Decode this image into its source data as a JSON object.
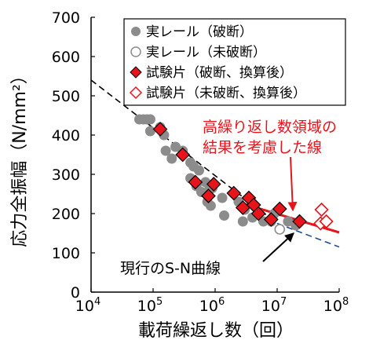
{
  "chart_data": {
    "type": "scatter",
    "title": "",
    "xlabel": "載荷繰返し数（回）",
    "ylabel": "応力全振幅（N/mm²）",
    "xscale": "log",
    "xlim": [
      10000,
      100000000
    ],
    "ylim": [
      0,
      700
    ],
    "x_ticks": [
      {
        "value": 10000,
        "base": "10",
        "exp": "4"
      },
      {
        "value": 100000,
        "base": "10",
        "exp": "5"
      },
      {
        "value": 1000000,
        "base": "10",
        "exp": "6"
      },
      {
        "value": 10000000,
        "base": "10",
        "exp": "7"
      },
      {
        "value": 100000000,
        "base": "10",
        "exp": "8"
      }
    ],
    "y_ticks": [
      0,
      100,
      200,
      300,
      400,
      500,
      600,
      700
    ],
    "legend_position": "top-right",
    "series": [
      {
        "name": "実レール（破断）",
        "marker": "circle-filled",
        "color": "#8c8c8c",
        "points": [
          [
            60000,
            440
          ],
          [
            70000,
            440
          ],
          [
            80000,
            440
          ],
          [
            90000,
            440
          ],
          [
            130000,
            420
          ],
          [
            90000,
            410
          ],
          [
            150000,
            400
          ],
          [
            160000,
            360
          ],
          [
            230000,
            370
          ],
          [
            300000,
            360
          ],
          [
            200000,
            340
          ],
          [
            400000,
            330
          ],
          [
            450000,
            320
          ],
          [
            550000,
            310
          ],
          [
            400000,
            290
          ],
          [
            500000,
            270
          ],
          [
            700000,
            280
          ],
          [
            600000,
            255
          ],
          [
            800000,
            260
          ],
          [
            900000,
            265
          ],
          [
            750000,
            230
          ],
          [
            850000,
            220
          ],
          [
            1300000,
            240
          ],
          [
            2400000,
            230
          ],
          [
            3000000,
            210
          ],
          [
            1400000,
            195
          ],
          [
            2800000,
            180
          ],
          [
            4000000,
            190
          ],
          [
            6000000,
            180
          ],
          [
            8000000,
            180
          ],
          [
            9000000,
            200
          ],
          [
            15000000,
            180
          ],
          [
            20000000,
            170
          ]
        ]
      },
      {
        "name": "実レール（未破断）",
        "marker": "circle-open",
        "color": "#8c8c8c",
        "points": [
          [
            11000000,
            160
          ]
        ]
      },
      {
        "name": "試験片（破断、換算後）",
        "marker": "diamond-filled",
        "color": "#e8141c",
        "points": [
          [
            130000,
            415
          ],
          [
            300000,
            350
          ],
          [
            480000,
            280
          ],
          [
            780000,
            245
          ],
          [
            950000,
            275
          ],
          [
            2000000,
            252
          ],
          [
            2800000,
            215
          ],
          [
            3500000,
            240
          ],
          [
            4200000,
            222
          ],
          [
            5000000,
            200
          ],
          [
            8000000,
            185
          ],
          [
            11000000,
            212
          ],
          [
            23000000,
            180
          ]
        ]
      },
      {
        "name": "試験片（未破断、換算後）",
        "marker": "diamond-open",
        "color": "#e8141c",
        "points": [
          [
            52000000,
            210
          ],
          [
            50000000,
            175
          ],
          [
            62000000,
            180
          ]
        ]
      }
    ],
    "lines": [
      {
        "name": "現行のS-N曲線",
        "style": "dashed",
        "color": "#000000",
        "points": [
          [
            10000,
            540
          ],
          [
            10000000,
            175
          ]
        ]
      },
      {
        "name": "",
        "style": "dashed",
        "color": "#1f4e8c",
        "points": [
          [
            10000000,
            175
          ],
          [
            100000000,
            115
          ]
        ]
      },
      {
        "name": "高繰り返し数領域の結果を考慮した線",
        "style": "solid",
        "color": "#e8141c",
        "points": [
          [
            2000000,
            232
          ],
          [
            100000000,
            152
          ]
        ]
      }
    ],
    "annotations": {
      "red_line_label": [
        "高繰り返し数領域の",
        "結果を考慮した線"
      ],
      "sn_curve_label": "現行のS-N曲線"
    }
  }
}
